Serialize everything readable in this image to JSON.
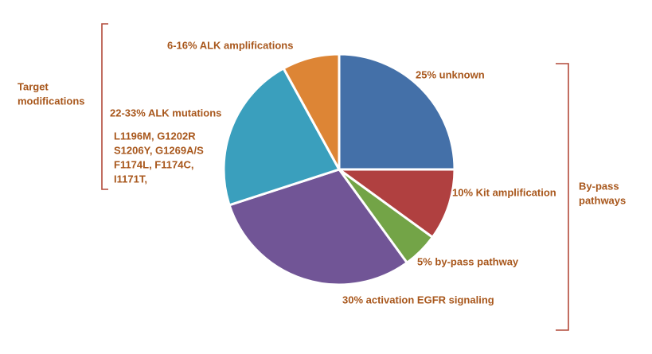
{
  "chart_data": {
    "type": "pie",
    "categories": [
      "25% unknown",
      "10% Kit amplification",
      "5% by-pass pathway",
      "30% activation EGFR signaling",
      "22-33% ALK mutations",
      "6-16% ALK amplifications"
    ],
    "values": [
      25,
      10,
      5,
      30,
      22,
      8
    ],
    "colors": [
      "#4470a8",
      "#b04040",
      "#73a447",
      "#715596",
      "#3a9fbd",
      "#dd8535"
    ]
  },
  "mutation_list": [
    "L1196M, G1202R",
    "S1206Y, G1269A/S",
    "F1174L, F1174C,",
    "I1171T,"
  ],
  "groups": [
    {
      "label": [
        "Target",
        "modifications"
      ]
    },
    {
      "label": [
        "By-pass",
        "pathways"
      ]
    }
  ]
}
